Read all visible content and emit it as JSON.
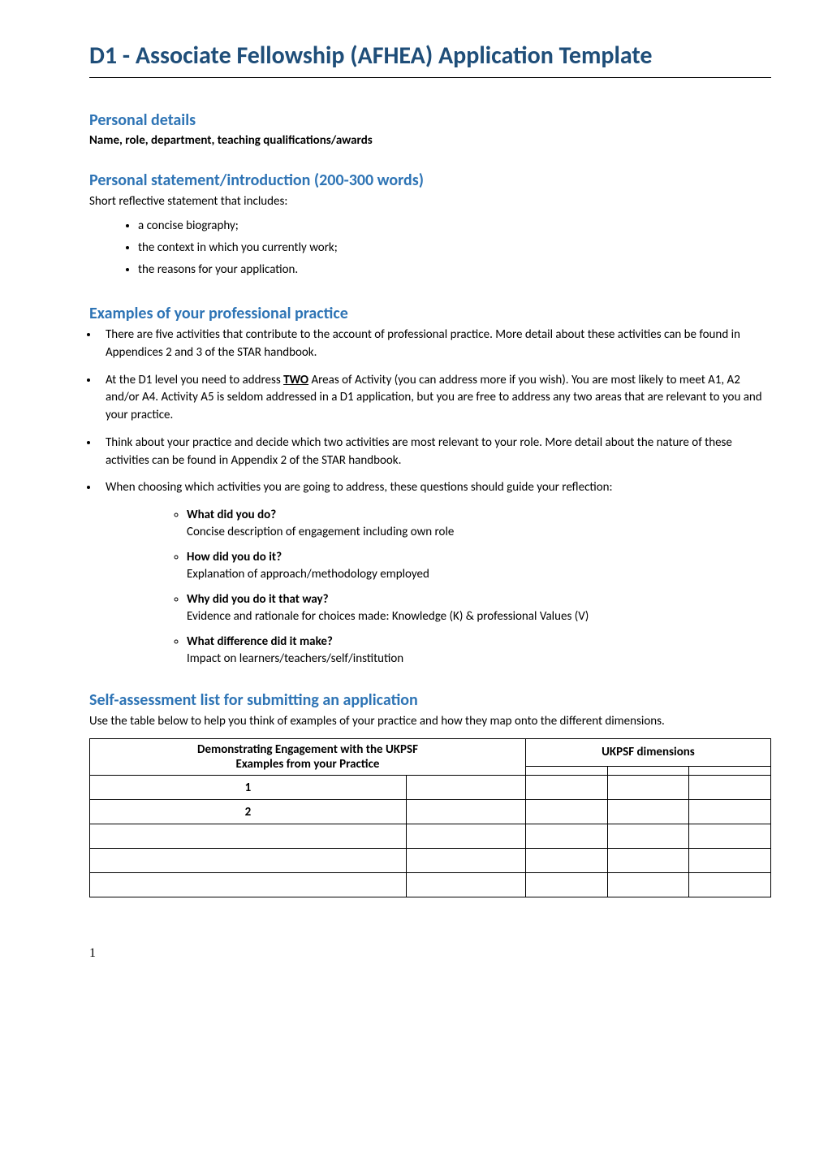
{
  "title": "D1 - Associate Fellowship (AFHEA) Application Template",
  "sections": {
    "personal_details": {
      "heading": "Personal details",
      "subtext": "Name, role, department, teaching qualifications/awards"
    },
    "personal_statement": {
      "heading": "Personal statement/introduction (200-300 words)",
      "intro": "Short reflective statement that includes:",
      "bullets": [
        "a concise biography;",
        "the context in which you currently work;",
        "the reasons for your application."
      ]
    },
    "professional_practice": {
      "heading": "Examples of your professional practice",
      "main_bullets": [
        "There are five activities that contribute to the account of professional practice. More detail about these activities can be found in Appendices 2 and 3 of the STAR handbook.",
        "At the D1 level you need to address <strong class=\"underline\">TWO</strong> Areas of Activity (you can address more if you wish). You are most likely to meet A1, A2 and/or A4. Activity A5 is seldom addressed in a D1 application, but you are free to address any two areas that are relevant to you and your practice.",
        "Think about your practice and decide which two activities are most relevant to your role. More detail about the nature of these activities can be found in Appendix 2 of the STAR handbook.",
        "When choosing which activities you are going to address, these questions should guide your reflection:"
      ],
      "sub_bullets": [
        {
          "title": "What did you do?",
          "desc": "Concise description of engagement including own role"
        },
        {
          "title": "How did you do it?",
          "desc": "Explanation of approach/methodology employed"
        },
        {
          "title": "Why did you do it that way?",
          "desc": "Evidence and rationale for choices made:  Knowledge (K) & professional Values (V)"
        },
        {
          "title": "What difference did it make?",
          "desc": "Impact on learners/teachers/self/institution"
        }
      ]
    },
    "self_assessment": {
      "heading": "Self-assessment list for submitting an application",
      "intro": "Use the table below to help you think of examples of your practice and how they map onto the different dimensions.",
      "table": {
        "header_left_line1": "Demonstrating Engagement with the UKPSF",
        "header_left_line2": "Examples from your Practice",
        "header_right": "UKPSF dimensions",
        "rows": [
          {
            "num": "1",
            "example": "",
            "d1": "",
            "d2": "",
            "d3": ""
          },
          {
            "num": "2",
            "example": "",
            "d1": "",
            "d2": "",
            "d3": ""
          },
          {
            "num": "",
            "example": "",
            "d1": "",
            "d2": "",
            "d3": ""
          },
          {
            "num": "",
            "example": "",
            "d1": "",
            "d2": "",
            "d3": ""
          },
          {
            "num": "",
            "example": "",
            "d1": "",
            "d2": "",
            "d3": ""
          }
        ]
      }
    }
  },
  "page_number": "1",
  "colors": {
    "title_color": "#1f4e79",
    "heading_color": "#2e74b5",
    "text_color": "#000000",
    "background": "#ffffff",
    "border_color": "#000000"
  },
  "fonts": {
    "body_family": "Calibri, Arial, sans-serif",
    "title_size": 30,
    "heading_size": 20,
    "body_size": 15
  }
}
